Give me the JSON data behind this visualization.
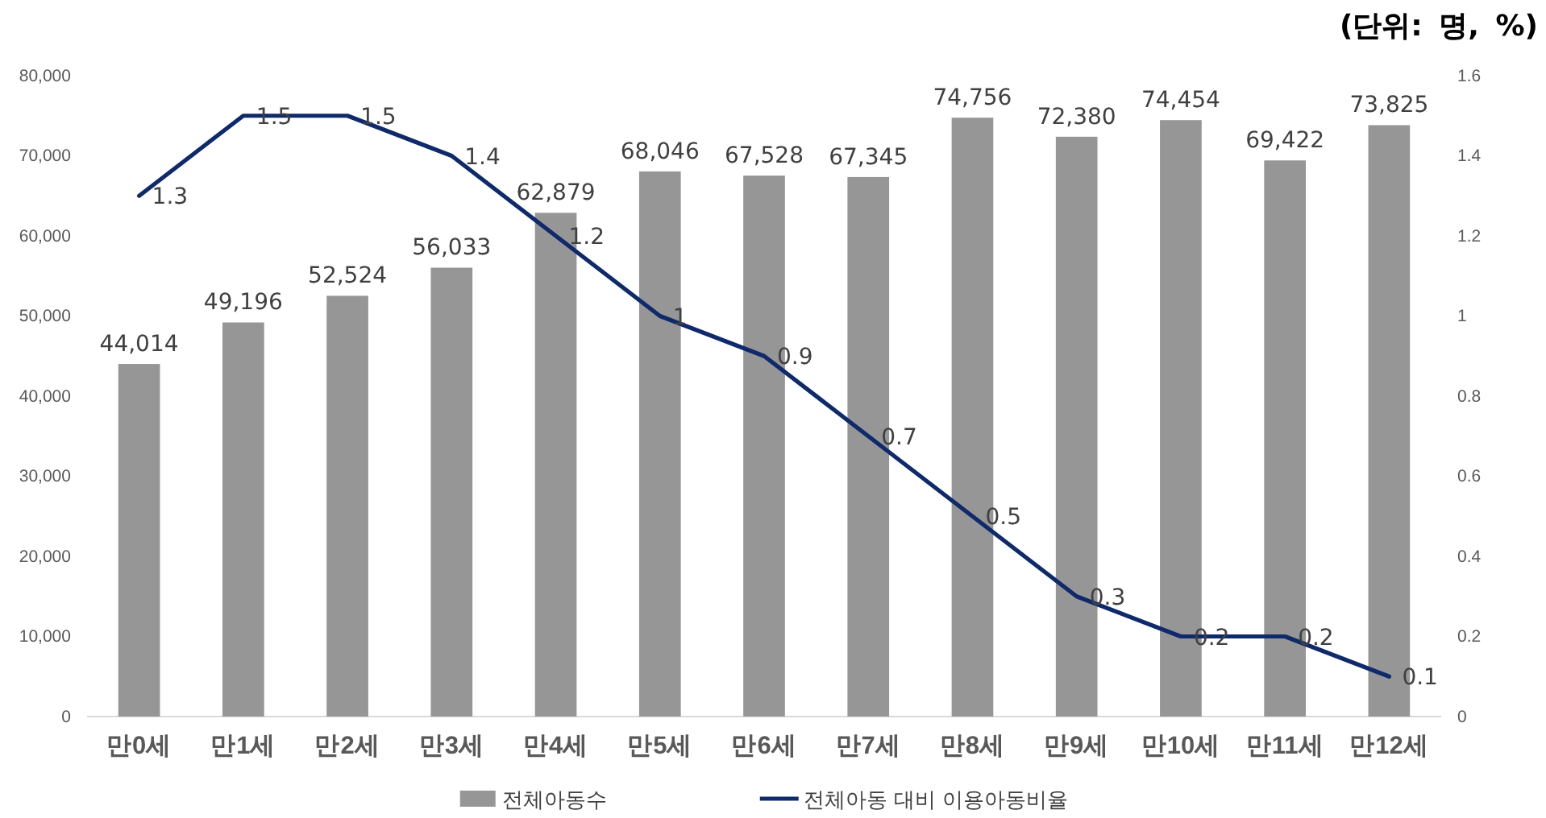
{
  "chart_data": {
    "type": "bar",
    "categories": [
      "만0세",
      "만1세",
      "만2세",
      "만3세",
      "만4세",
      "만5세",
      "만6세",
      "만7세",
      "만8세",
      "만9세",
      "만10세",
      "만11세",
      "만12세"
    ],
    "series": [
      {
        "name": "전체아동수",
        "color": "#969696",
        "values": [
          44014,
          49196,
          52524,
          56033,
          62879,
          68046,
          67528,
          67345,
          74756,
          72380,
          74454,
          69422,
          73825
        ],
        "value_labels": [
          "44,014",
          "49,196",
          "52,524",
          "56,033",
          "62,879",
          "68,046",
          "67,528",
          "67,345",
          "74,756",
          "72,380",
          "74,454",
          "69,422",
          "73,825"
        ]
      },
      {
        "name": "전체아동 대비 이용아동비율",
        "type": "line",
        "axis": "y2",
        "color": "#0e2a6b",
        "values": [
          1.3,
          1.5,
          1.5,
          1.4,
          1.2,
          1,
          0.9,
          0.7,
          0.5,
          0.3,
          0.2,
          0.2,
          0.1
        ]
      }
    ],
    "ylim": [
      0,
      80000
    ],
    "yticks": [
      0,
      {
        "value": 10000,
        "label": "10,000"
      },
      {
        "value": 20000,
        "label": "20,000"
      },
      {
        "value": 30000,
        "label": "30,000"
      },
      {
        "value": 40000,
        "label": "40,000"
      },
      {
        "value": 50000,
        "label": "50,000"
      },
      {
        "value": 60000,
        "label": "60,000"
      },
      {
        "value": 70000,
        "label": "70,000"
      },
      {
        "value": 80000,
        "label": "80,000"
      }
    ],
    "y2lim": [
      0,
      1.6
    ],
    "y2ticks": [
      0,
      0.2,
      0.4,
      0.6,
      0.8,
      1,
      1.2,
      1.4,
      1.6
    ],
    "data_labels": true,
    "grid": false,
    "legend": "bottom",
    "line_style": "solid",
    "annotations": [
      "(단위: 명, %)"
    ]
  }
}
